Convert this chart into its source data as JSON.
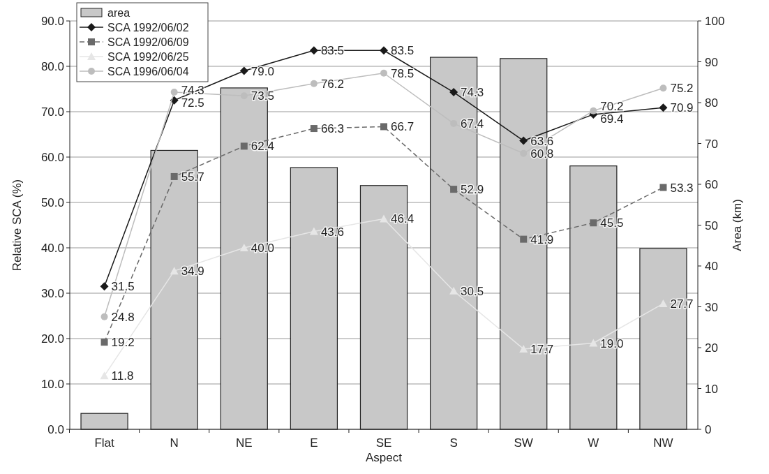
{
  "chart_data": {
    "type": "line",
    "xlabel": "Aspect",
    "ylabel": "Relative SCA (%)",
    "y2label": "Area (km)",
    "categories": [
      "Flat",
      "N",
      "NE",
      "E",
      "SE",
      "S",
      "SW",
      "W",
      "NW"
    ],
    "ylim": [
      0,
      90
    ],
    "yticks": [
      {
        "value": 0,
        "label": "0.0"
      },
      {
        "value": 10,
        "label": "10.0"
      },
      {
        "value": 20,
        "label": "20.0"
      },
      {
        "value": 30,
        "label": "30.0"
      },
      {
        "value": 40,
        "label": "40.0"
      },
      {
        "value": 50,
        "label": "50.0"
      },
      {
        "value": 60,
        "label": "60.0"
      },
      {
        "value": 70,
        "label": "70.0"
      },
      {
        "value": 80,
        "label": "80.0"
      },
      {
        "value": 90,
        "label": "90.0"
      }
    ],
    "y2lim": [
      0,
      100
    ],
    "y2ticks": [
      0,
      10,
      20,
      30,
      40,
      50,
      60,
      70,
      80,
      90,
      100
    ],
    "grid": "y",
    "legend": "top left",
    "series": [
      {
        "name": "area",
        "type": "bar",
        "axis": "y2",
        "color": "#c8c8c8",
        "values": [
          3.9,
          68.3,
          83.6,
          64.1,
          59.7,
          91.1,
          90.8,
          64.5,
          44.3
        ]
      },
      {
        "name": "SCA 1992/06/02",
        "color": "#1a1a1a",
        "marker": "diamond",
        "line_style": "solid",
        "values": [
          31.5,
          72.5,
          79.0,
          83.5,
          83.5,
          74.3,
          63.6,
          69.4,
          70.9
        ],
        "value_labels": [
          "31.5",
          "72.5",
          "79.0",
          "83.5",
          "83.5",
          "74.3",
          "63.6",
          "69.4",
          "70.9"
        ]
      },
      {
        "name": "SCA 1992/06/09",
        "color": "#6a6a6a",
        "marker": "square",
        "line_style": "dashed",
        "values": [
          19.2,
          55.7,
          62.4,
          66.3,
          66.7,
          52.9,
          41.9,
          45.5,
          53.3
        ],
        "value_labels": [
          "19.2",
          "55.7",
          "62.4",
          "66.3",
          "66.7",
          "52.9",
          "41.9",
          "45.5",
          "53.3"
        ]
      },
      {
        "name": "SCA 1992/06/25",
        "color": "#e6e6e6",
        "marker": "triangle",
        "line_style": "solid",
        "values": [
          11.8,
          34.9,
          40.0,
          43.6,
          46.4,
          30.5,
          17.7,
          19.0,
          27.7
        ],
        "value_labels": [
          "11.8",
          "34.9",
          "40.0",
          "43.6",
          "46.4",
          "30.5",
          "17.7",
          "19.0",
          "27.7"
        ]
      },
      {
        "name": "SCA 1996/06/04",
        "color": "#bdbdbd",
        "marker": "circle",
        "line_style": "solid",
        "values": [
          24.8,
          74.3,
          73.5,
          76.2,
          78.5,
          67.4,
          60.8,
          70.2,
          75.2
        ],
        "value_labels": [
          "24.8",
          "74.3",
          "73.5",
          "76.2",
          "78.5",
          "67.4",
          "60.8",
          "70.2",
          "75.2"
        ]
      }
    ]
  }
}
